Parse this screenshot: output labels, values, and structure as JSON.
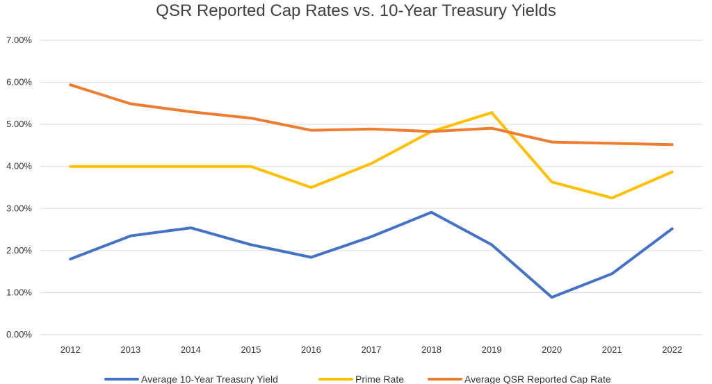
{
  "chart_data": {
    "type": "line",
    "title": "QSR Reported Cap Rates vs. 10-Year Treasury Yields",
    "xlabel": "",
    "ylabel": "",
    "categories": [
      "2012",
      "2013",
      "2014",
      "2015",
      "2016",
      "2017",
      "2018",
      "2019",
      "2020",
      "2021",
      "2022"
    ],
    "ylim": [
      0,
      7
    ],
    "yticks": [
      "0.00%",
      "1.00%",
      "2.00%",
      "3.00%",
      "4.00%",
      "5.00%",
      "6.00%",
      "7.00%"
    ],
    "grid": true,
    "legend_position": "bottom",
    "series": [
      {
        "name": "Average 10-Year Treasury Yield",
        "color": "#4472C4",
        "values": [
          1.8,
          2.35,
          2.54,
          2.14,
          1.84,
          2.33,
          2.91,
          2.14,
          0.89,
          1.45,
          2.52
        ]
      },
      {
        "name": "Prime Rate",
        "color": "#FFC000",
        "values": [
          4.0,
          4.0,
          4.0,
          4.0,
          3.5,
          4.07,
          4.83,
          5.28,
          3.63,
          3.25,
          3.87
        ]
      },
      {
        "name": "Average QSR Reported Cap Rate",
        "color": "#ED7D31",
        "values": [
          5.94,
          5.49,
          5.3,
          5.15,
          4.86,
          4.89,
          4.83,
          4.91,
          4.58,
          4.55,
          4.52
        ]
      }
    ]
  }
}
